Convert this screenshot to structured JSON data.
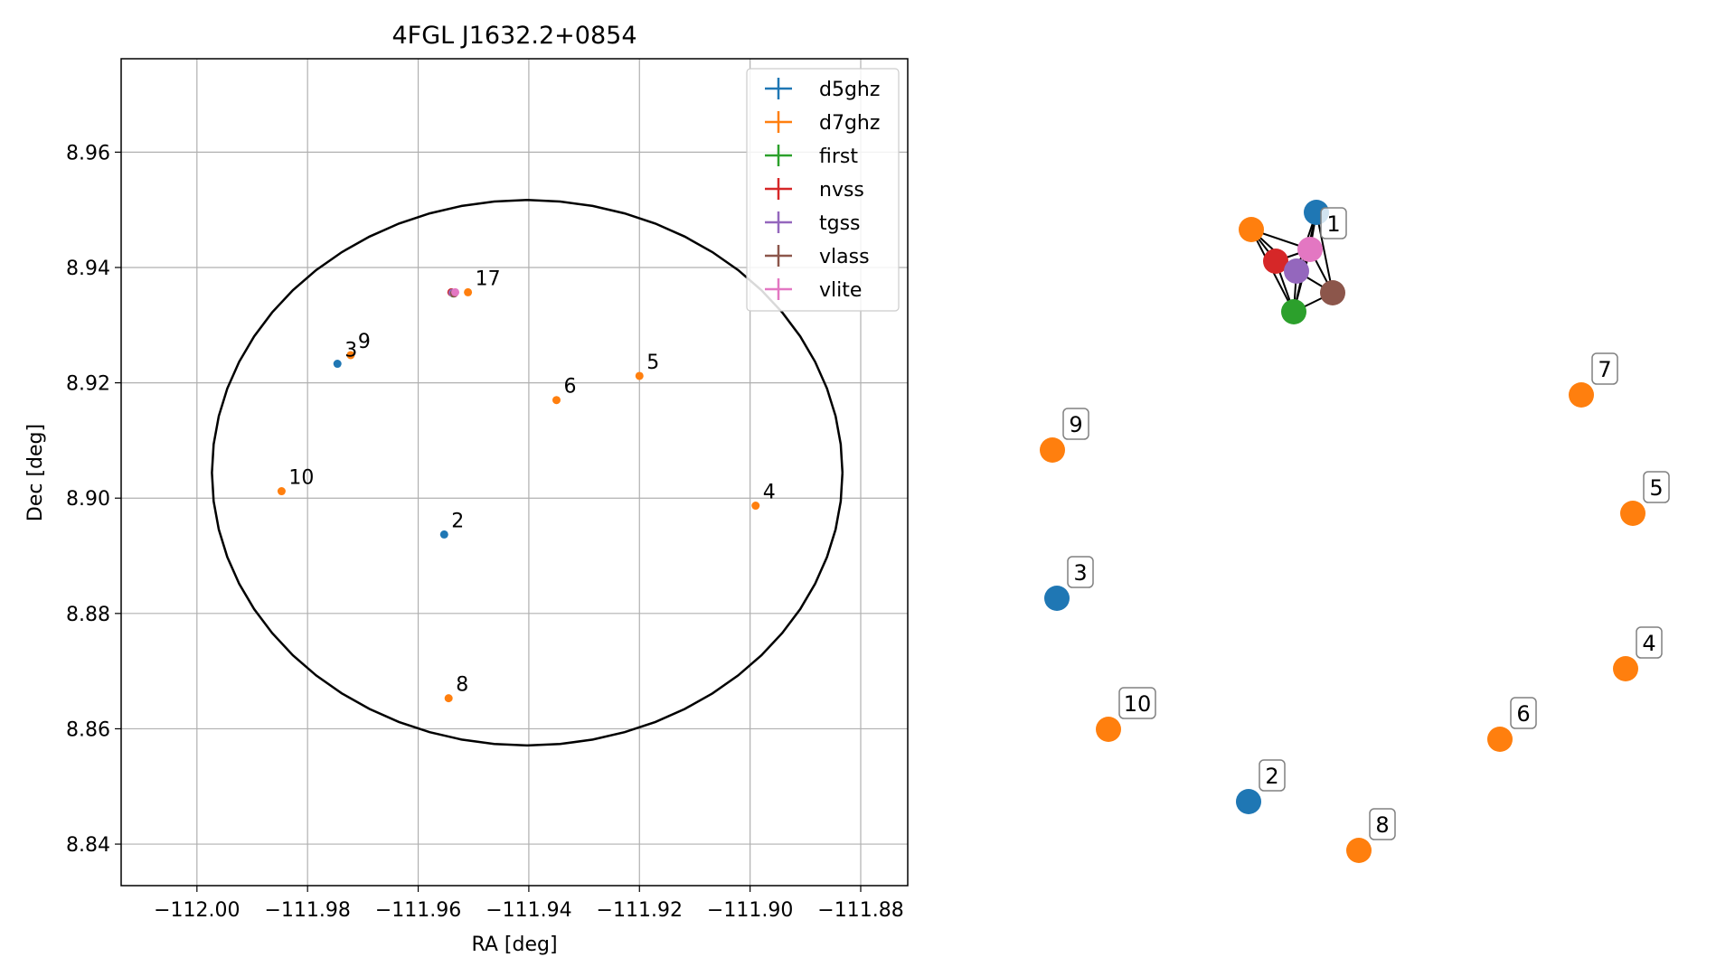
{
  "chart_data": [
    {
      "type": "scatter",
      "title": "4FGL J1632.2+0854",
      "xlabel": "RA [deg]",
      "ylabel": "Dec [deg]",
      "xlim": [
        -112.0137,
        -111.8715
      ],
      "ylim": [
        8.8328,
        8.9762
      ],
      "xticks": [
        -112.0,
        -111.98,
        -111.96,
        -111.94,
        -111.92,
        -111.9,
        -111.88
      ],
      "xtick_labels": [
        "−112.00",
        "−111.98",
        "−111.96",
        "−111.94",
        "−111.92",
        "−111.90",
        "−111.88"
      ],
      "yticks": [
        8.84,
        8.86,
        8.88,
        8.9,
        8.92,
        8.94,
        8.96
      ],
      "ytick_labels": [
        "8.84",
        "8.86",
        "8.88",
        "8.90",
        "8.92",
        "8.94",
        "8.96"
      ],
      "grid": true,
      "legend_position": "top-right",
      "colors": {
        "d5ghz": "#1f77b4",
        "d7ghz": "#ff7f0e",
        "first": "#2ca02c",
        "nvss": "#d62728",
        "tgss": "#9467bd",
        "vlass": "#8c564b",
        "vlite": "#e377c2"
      },
      "circle": {
        "center_ra": -111.9403,
        "center_dec": 8.9044,
        "radius_deg": 0.0473
      },
      "series": [
        {
          "name": "d5ghz",
          "points": [
            {
              "ra": -111.9746,
              "dec": 8.9233
            },
            {
              "ra": -111.9553,
              "dec": 8.8937
            }
          ]
        },
        {
          "name": "d7ghz",
          "points": [
            {
              "ra": -111.951,
              "dec": 8.9357
            },
            {
              "ra": -111.9722,
              "dec": 8.9248
            },
            {
              "ra": -111.92,
              "dec": 8.9212
            },
            {
              "ra": -111.935,
              "dec": 8.917
            },
            {
              "ra": -111.9847,
              "dec": 8.9012
            },
            {
              "ra": -111.899,
              "dec": 8.8987
            },
            {
              "ra": -111.9545,
              "dec": 8.8653
            }
          ]
        },
        {
          "name": "first",
          "points": [
            {
              "ra": -111.9537,
              "dec": 8.9355
            }
          ]
        },
        {
          "name": "nvss",
          "points": [
            {
              "ra": -111.954,
              "dec": 8.9357
            }
          ]
        },
        {
          "name": "tgss",
          "points": [
            {
              "ra": -111.9538,
              "dec": 8.9356
            }
          ]
        },
        {
          "name": "vlass",
          "points": [
            {
              "ra": -111.9535,
              "dec": 8.9355
            }
          ]
        },
        {
          "name": "vlite",
          "points": [
            {
              "ra": -111.9533,
              "dec": 8.9357
            }
          ]
        }
      ],
      "annotations": [
        {
          "text": "17",
          "ra": -111.951,
          "dec": 8.9357
        },
        {
          "text": "3",
          "ra": -111.9746,
          "dec": 8.9233
        },
        {
          "text": "9",
          "ra": -111.9722,
          "dec": 8.9248
        },
        {
          "text": "5",
          "ra": -111.92,
          "dec": 8.9212
        },
        {
          "text": "6",
          "ra": -111.935,
          "dec": 8.917
        },
        {
          "text": "10",
          "ra": -111.9847,
          "dec": 8.9012
        },
        {
          "text": "4",
          "ra": -111.899,
          "dec": 8.8987
        },
        {
          "text": "2",
          "ra": -111.9553,
          "dec": 8.8937
        },
        {
          "text": "8",
          "ra": -111.9545,
          "dec": 8.8653
        }
      ]
    },
    {
      "type": "network",
      "nodes": [
        {
          "id": "1-d5ghz",
          "catalog": "d5ghz"
        },
        {
          "id": "1-d7ghz",
          "catalog": "d7ghz"
        },
        {
          "id": "1-first",
          "catalog": "first"
        },
        {
          "id": "1-nvss",
          "catalog": "nvss"
        },
        {
          "id": "1-tgss",
          "catalog": "tgss"
        },
        {
          "id": "1-vlass",
          "catalog": "vlass"
        },
        {
          "id": "1-vlite",
          "catalog": "vlite",
          "label": "1"
        },
        {
          "id": "7",
          "catalog": "d7ghz",
          "label": "7"
        },
        {
          "id": "9",
          "catalog": "d7ghz",
          "label": "9"
        },
        {
          "id": "5",
          "catalog": "d7ghz",
          "label": "5"
        },
        {
          "id": "3",
          "catalog": "d5ghz",
          "label": "3"
        },
        {
          "id": "4",
          "catalog": "d7ghz",
          "label": "4"
        },
        {
          "id": "10",
          "catalog": "d7ghz",
          "label": "10"
        },
        {
          "id": "6",
          "catalog": "d7ghz",
          "label": "6"
        },
        {
          "id": "2",
          "catalog": "d5ghz",
          "label": "2"
        },
        {
          "id": "8",
          "catalog": "d7ghz",
          "label": "8"
        }
      ],
      "edges": [
        [
          "1-d7ghz",
          "1-nvss"
        ],
        [
          "1-d7ghz",
          "1-tgss"
        ],
        [
          "1-d7ghz",
          "1-vlite"
        ],
        [
          "1-d7ghz",
          "1-first"
        ],
        [
          "1-d5ghz",
          "1-vlite"
        ],
        [
          "1-d5ghz",
          "1-tgss"
        ],
        [
          "1-d5ghz",
          "1-vlass"
        ],
        [
          "1-d5ghz",
          "1-first"
        ],
        [
          "1-nvss",
          "1-vlite"
        ],
        [
          "1-nvss",
          "1-tgss"
        ],
        [
          "1-nvss",
          "1-first"
        ],
        [
          "1-vlite",
          "1-vlass"
        ],
        [
          "1-vlite",
          "1-first"
        ],
        [
          "1-vlite",
          "1-tgss"
        ],
        [
          "1-tgss",
          "1-vlass"
        ],
        [
          "1-tgss",
          "1-first"
        ],
        [
          "1-vlass",
          "1-first"
        ]
      ]
    }
  ]
}
